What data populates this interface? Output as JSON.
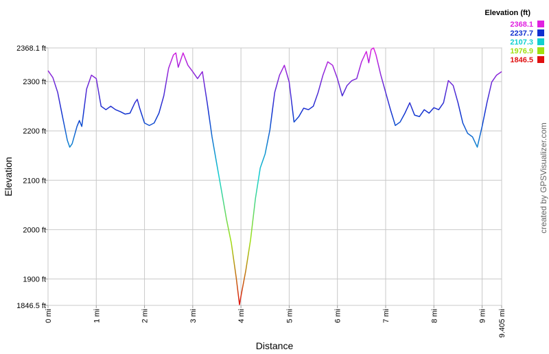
{
  "chart_data": {
    "type": "line",
    "xlabel": "Distance",
    "ylabel": "Elevation",
    "credit": "created by GPSVisualizer.com",
    "legend_title": "Elevation (ft)",
    "color_scale": [
      {
        "value": 2368.1,
        "color": "#e020e0"
      },
      {
        "value": 2237.7,
        "color": "#1030d0"
      },
      {
        "value": 2107.3,
        "color": "#10d0d0"
      },
      {
        "value": 1976.9,
        "color": "#a0e010"
      },
      {
        "value": 1846.5,
        "color": "#e01010"
      }
    ],
    "x": [
      0,
      0.1,
      0.2,
      0.3,
      0.4,
      0.45,
      0.5,
      0.6,
      0.65,
      0.7,
      0.8,
      0.9,
      1.0,
      1.1,
      1.2,
      1.3,
      1.4,
      1.5,
      1.6,
      1.7,
      1.8,
      1.85,
      1.9,
      2.0,
      2.1,
      2.2,
      2.3,
      2.4,
      2.5,
      2.6,
      2.65,
      2.7,
      2.8,
      2.9,
      3.0,
      3.1,
      3.2,
      3.3,
      3.4,
      3.5,
      3.6,
      3.7,
      3.8,
      3.9,
      3.97,
      4.0,
      4.1,
      4.2,
      4.3,
      4.4,
      4.5,
      4.6,
      4.7,
      4.8,
      4.9,
      5.0,
      5.1,
      5.2,
      5.3,
      5.4,
      5.5,
      5.6,
      5.7,
      5.8,
      5.9,
      6.0,
      6.1,
      6.2,
      6.3,
      6.4,
      6.5,
      6.6,
      6.65,
      6.7,
      6.75,
      6.8,
      6.9,
      7.0,
      7.1,
      7.2,
      7.3,
      7.4,
      7.5,
      7.6,
      7.7,
      7.8,
      7.9,
      8.0,
      8.1,
      8.2,
      8.3,
      8.4,
      8.5,
      8.6,
      8.7,
      8.8,
      8.9,
      9.0,
      9.1,
      9.2,
      9.3,
      9.405
    ],
    "values": [
      2322,
      2308,
      2278,
      2229,
      2181,
      2167,
      2174,
      2209,
      2221,
      2209,
      2285,
      2313,
      2306,
      2250,
      2243,
      2250,
      2243,
      2239,
      2234,
      2236,
      2257,
      2264,
      2246,
      2216,
      2211,
      2216,
      2236,
      2271,
      2327,
      2354,
      2358,
      2329,
      2358,
      2333,
      2320,
      2306,
      2320,
      2257,
      2188,
      2132,
      2077,
      2021,
      1973,
      1904,
      1848,
      1865,
      1917,
      1980,
      2063,
      2125,
      2153,
      2202,
      2278,
      2313,
      2333,
      2299,
      2218,
      2229,
      2246,
      2243,
      2250,
      2278,
      2313,
      2340,
      2333,
      2306,
      2271,
      2292,
      2302,
      2306,
      2340,
      2361,
      2338,
      2365,
      2368.1,
      2354,
      2313,
      2278,
      2243,
      2211,
      2218,
      2236,
      2257,
      2232,
      2229,
      2243,
      2236,
      2247,
      2243,
      2257,
      2302,
      2292,
      2257,
      2216,
      2195,
      2188,
      2167,
      2209,
      2257,
      2299,
      2313,
      2320
    ],
    "xlim": [
      0,
      9.405
    ],
    "xticks": [
      {
        "value": 0,
        "label": "0 mi"
      },
      {
        "value": 1,
        "label": "1 mi"
      },
      {
        "value": 2,
        "label": "2 mi"
      },
      {
        "value": 3,
        "label": "3 mi"
      },
      {
        "value": 4,
        "label": "4 mi"
      },
      {
        "value": 5,
        "label": "5 mi"
      },
      {
        "value": 6,
        "label": "6 mi"
      },
      {
        "value": 7,
        "label": "7 mi"
      },
      {
        "value": 8,
        "label": "8 mi"
      },
      {
        "value": 9,
        "label": "9 mi"
      },
      {
        "value": 9.405,
        "label": "9.405 mi"
      }
    ],
    "ylim": [
      1846.5,
      2368.1
    ],
    "yticks": [
      {
        "value": 1846.5,
        "label": "1846.5 ft"
      },
      {
        "value": 1900,
        "label": "1900 ft"
      },
      {
        "value": 2000,
        "label": "2000 ft"
      },
      {
        "value": 2100,
        "label": "2100 ft"
      },
      {
        "value": 2200,
        "label": "2200 ft"
      },
      {
        "value": 2300,
        "label": "2300 ft"
      },
      {
        "value": 2368.1,
        "label": "2368.1 ft"
      }
    ],
    "grid": true
  }
}
